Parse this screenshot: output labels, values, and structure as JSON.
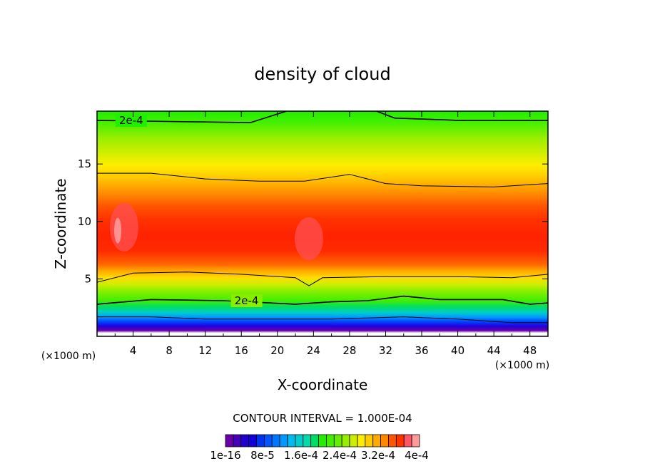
{
  "chart_data": {
    "type": "heatmap",
    "title": "density of cloud",
    "xlabel": "X-coordinate",
    "ylabel": "Z-coordinate",
    "x_unit_label": "(×1000 m)",
    "y_unit_label": "(×1000 m)",
    "xlim": [
      0,
      50
    ],
    "ylim": [
      0,
      19.6
    ],
    "x_ticks": [
      4,
      8,
      12,
      16,
      20,
      24,
      28,
      32,
      36,
      40,
      44,
      48
    ],
    "x_tick_labels": [
      "4",
      "8",
      "12",
      "16",
      "20",
      "24",
      "28",
      "32",
      "36",
      "40",
      "44",
      "48"
    ],
    "y_ticks": [
      5,
      10,
      15
    ],
    "y_tick_labels": [
      "5",
      "10",
      "15"
    ],
    "contour_interval_text": "CONTOUR INTERVAL = 1.000E-04",
    "contour_levels": [
      0.0002,
      0.0002
    ],
    "contour_labels": [
      "2e-4",
      "2e-4"
    ],
    "colorbar": {
      "min": 1e-16,
      "max": 0.0004,
      "n_levels": 25,
      "tick_labels": [
        "1e-16",
        "8e-5",
        "1.6e-4",
        "2.4e-4",
        "3.2e-4",
        "4e-4"
      ]
    },
    "profiles": [
      {
        "z_range": "0.5-1.5",
        "approx_value": 1e-16,
        "color": "#6a00a8"
      },
      {
        "z_range": "2-3",
        "approx_value": 0.0001,
        "color": "#00cccc"
      },
      {
        "z_range": "3-5",
        "approx_value": 0.00018,
        "color": "#66ee00"
      },
      {
        "z_range": "5-7",
        "approx_value": 0.00028,
        "color": "#ffaa00"
      },
      {
        "z_range": "7-11",
        "approx_value": 0.00035,
        "color": "#ff2a00"
      },
      {
        "z_range": "12-14",
        "approx_value": 0.0003,
        "color": "#ff7700"
      },
      {
        "z_range": "15-17",
        "approx_value": 0.00024,
        "color": "#ffee00"
      },
      {
        "z_range": "18-19.6",
        "approx_value": 0.00016,
        "color": "#33ff00"
      }
    ]
  }
}
